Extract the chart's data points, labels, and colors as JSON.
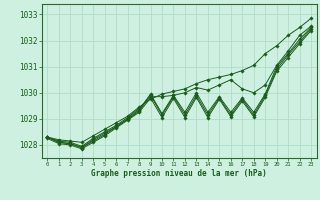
{
  "xlabel": "Graphe pression niveau de la mer (hPa)",
  "bg_color": "#cdf0e0",
  "grid_color": "#b0ddc8",
  "line_color": "#1a5c1a",
  "spine_color": "#336633",
  "x_ticks": [
    0,
    1,
    2,
    3,
    4,
    5,
    6,
    7,
    8,
    9,
    10,
    11,
    12,
    13,
    14,
    15,
    16,
    17,
    18,
    19,
    20,
    21,
    22,
    23
  ],
  "ylim": [
    1027.5,
    1033.4
  ],
  "y_ticks": [
    1028,
    1029,
    1030,
    1031,
    1032,
    1033
  ],
  "series": [
    [
      1028.3,
      1028.2,
      1028.15,
      1028.1,
      1028.35,
      1028.6,
      1028.85,
      1029.1,
      1029.45,
      1029.75,
      1029.95,
      1030.05,
      1030.15,
      1030.35,
      1030.5,
      1030.6,
      1030.7,
      1030.85,
      1031.05,
      1031.5,
      1031.8,
      1032.2,
      1032.5,
      1032.85
    ],
    [
      1028.3,
      1028.15,
      1028.1,
      1027.95,
      1028.25,
      1028.5,
      1028.75,
      1029.05,
      1029.4,
      1029.85,
      1029.85,
      1029.9,
      1030.0,
      1030.2,
      1030.1,
      1030.3,
      1030.5,
      1030.15,
      1030.0,
      1030.3,
      1031.05,
      1031.6,
      1032.2,
      1032.55
    ],
    [
      1028.3,
      1028.1,
      1028.05,
      1027.9,
      1028.2,
      1028.45,
      1028.7,
      1029.0,
      1029.35,
      1029.95,
      1029.2,
      1029.9,
      1029.25,
      1030.0,
      1029.25,
      1029.85,
      1029.25,
      1029.8,
      1029.25,
      1029.95,
      1031.0,
      1031.5,
      1032.05,
      1032.5
    ],
    [
      1028.3,
      1028.1,
      1028.05,
      1027.9,
      1028.15,
      1028.4,
      1028.7,
      1028.98,
      1029.3,
      1029.9,
      1029.15,
      1029.85,
      1029.15,
      1029.9,
      1029.15,
      1029.8,
      1029.15,
      1029.75,
      1029.15,
      1029.9,
      1030.9,
      1031.45,
      1031.95,
      1032.45
    ],
    [
      1028.25,
      1028.05,
      1028.0,
      1027.85,
      1028.1,
      1028.35,
      1028.65,
      1028.95,
      1029.25,
      1029.8,
      1029.05,
      1029.78,
      1029.05,
      1029.82,
      1029.05,
      1029.75,
      1029.08,
      1029.68,
      1029.08,
      1029.82,
      1030.82,
      1031.35,
      1031.88,
      1032.38
    ]
  ]
}
